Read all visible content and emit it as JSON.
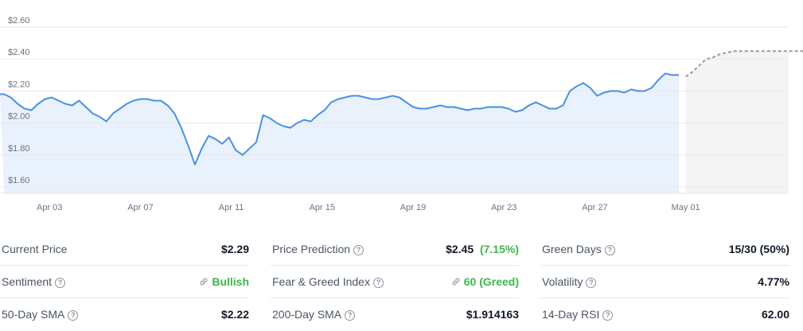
{
  "chart_data": {
    "type": "line",
    "x_start": "2024-04-01",
    "y_tick_labels": [
      "$1.60",
      "$1.80",
      "$2.00",
      "$2.20",
      "$2.40",
      "$2.60"
    ],
    "y_ticks": [
      1.6,
      1.8,
      2.0,
      2.2,
      2.4,
      2.6
    ],
    "ylim": [
      1.56,
      2.66
    ],
    "x_tick_labels": [
      "Apr 03",
      "Apr 07",
      "Apr 11",
      "Apr 15",
      "Apr 19",
      "Apr 23",
      "Apr 27",
      "May 01"
    ],
    "grid": true,
    "series": [
      {
        "style": "solid",
        "color": "#4a90e2",
        "fill": "#e9f1fc",
        "x": [
          0,
          0.3,
          0.6,
          0.9,
          1.2,
          1.5,
          1.8,
          2.1,
          2.4,
          2.7,
          3.0,
          3.3,
          3.6,
          3.9,
          4.2,
          4.5,
          4.8,
          5.1,
          5.4,
          5.7,
          6.0,
          6.3,
          6.6,
          6.9,
          7.2,
          7.5,
          7.8,
          8.1,
          8.4,
          8.7,
          9.0,
          9.3,
          9.6,
          9.9,
          10.2,
          10.5,
          10.8,
          11.1,
          11.4,
          11.7,
          12.0,
          12.3,
          12.6,
          12.9,
          13.2,
          13.5,
          13.8,
          14.1,
          14.4,
          14.7,
          15.0,
          15.3,
          15.6,
          15.9,
          16.2,
          16.5,
          16.8,
          17.1,
          17.4,
          17.7,
          18.0,
          18.3,
          18.6,
          18.9,
          19.2,
          19.5,
          19.8,
          20.1,
          20.4,
          20.7,
          21.0,
          21.3,
          21.6,
          21.9,
          22.2,
          22.5,
          22.8,
          23.1,
          23.4,
          23.7,
          24.0,
          24.3,
          24.6,
          24.9,
          25.2,
          25.5,
          25.8,
          26.1,
          26.4,
          26.7,
          27.0,
          27.3,
          27.6,
          27.9,
          28.2,
          28.5,
          28.8,
          29.1,
          29.4,
          29.7
        ],
        "y": [
          2.18,
          2.16,
          2.12,
          2.09,
          2.08,
          2.12,
          2.15,
          2.16,
          2.14,
          2.12,
          2.11,
          2.14,
          2.1,
          2.06,
          2.04,
          2.01,
          2.06,
          2.09,
          2.12,
          2.14,
          2.15,
          2.15,
          2.14,
          2.14,
          2.11,
          2.06,
          1.97,
          1.86,
          1.74,
          1.84,
          1.92,
          1.9,
          1.87,
          1.91,
          1.83,
          1.8,
          1.84,
          1.88,
          2.05,
          2.03,
          2.0,
          1.98,
          1.97,
          2.0,
          2.02,
          2.01,
          2.05,
          2.08,
          2.13,
          2.15,
          2.16,
          2.17,
          2.17,
          2.16,
          2.15,
          2.15,
          2.16,
          2.17,
          2.16,
          2.13,
          2.1,
          2.09,
          2.09,
          2.1,
          2.11,
          2.1,
          2.1,
          2.09,
          2.08,
          2.09,
          2.09,
          2.1,
          2.1,
          2.1,
          2.09,
          2.07,
          2.08,
          2.11,
          2.13,
          2.11,
          2.09,
          2.09,
          2.11,
          2.2,
          2.23,
          2.25,
          2.22,
          2.17,
          2.19,
          2.2,
          2.2,
          2.19,
          2.21,
          2.2,
          2.2,
          2.22,
          2.27,
          2.31,
          2.3,
          2.3
        ]
      },
      {
        "style": "dashed",
        "color": "#9a9a9a",
        "fill": "#f4f4f4",
        "x": [
          30.0,
          30.3,
          30.6,
          30.9,
          31.2,
          31.5,
          31.8,
          32.1,
          32.4,
          32.7,
          33.0,
          33.3,
          33.6,
          33.9,
          34.2,
          34.5,
          34.8,
          35.1,
          35.4,
          35.7,
          36.0,
          36.3,
          36.6,
          36.9,
          37.2,
          37.5,
          37.8,
          38.1,
          38.4,
          38.7,
          39.0,
          39.3,
          39.6,
          39.9
        ],
        "y": [
          2.29,
          2.32,
          2.36,
          2.4,
          2.41,
          2.43,
          2.44,
          2.45,
          2.45,
          2.45,
          2.45,
          2.45,
          2.45,
          2.45,
          2.45,
          2.45,
          2.45,
          2.45,
          2.45,
          2.45,
          2.45,
          2.45,
          2.45,
          2.45,
          2.45,
          2.45,
          2.45,
          2.45,
          2.45,
          2.45,
          2.45,
          2.45,
          2.45,
          2.45
        ]
      }
    ]
  },
  "stats": {
    "columns": [
      [
        {
          "label": "Current Price",
          "help": false,
          "value": "$2.29",
          "style": "plain"
        },
        {
          "label": "Sentiment",
          "help": true,
          "value": "Bullish",
          "style": "green-link"
        },
        {
          "label": "50-Day SMA",
          "help": true,
          "value": "$2.22",
          "style": "plain"
        }
      ],
      [
        {
          "label": "Price Prediction",
          "help": true,
          "value": "$2.45",
          "extra": "(7.15%)",
          "style": "plain-extra"
        },
        {
          "label": "Fear & Greed Index",
          "help": true,
          "value": "60 (Greed)",
          "style": "green-link"
        },
        {
          "label": "200-Day SMA",
          "help": true,
          "value": "$1.914163",
          "style": "plain"
        }
      ],
      [
        {
          "label": "Green Days",
          "help": true,
          "value": "15/30 (50%)",
          "style": "plain"
        },
        {
          "label": "Volatility",
          "help": true,
          "value": "4.77%",
          "style": "plain"
        },
        {
          "label": "14-Day RSI",
          "help": true,
          "value": "62.00",
          "style": "plain"
        }
      ]
    ],
    "help_glyph": "?",
    "link_icon": "link-icon"
  }
}
